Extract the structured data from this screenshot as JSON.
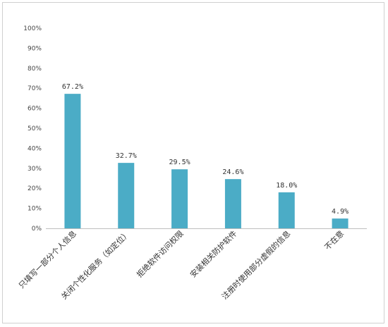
{
  "chart_data": {
    "type": "bar",
    "title": "",
    "xlabel": "",
    "ylabel": "",
    "categories": [
      "只填写一部分个人信息",
      "关闭个性化服务（如定位）",
      "拒绝软件访问权限",
      "安装相关防护软件",
      "注册时使用部分虚假的信息",
      "不在意"
    ],
    "values": [
      67.2,
      32.7,
      29.5,
      24.6,
      18.0,
      4.9
    ],
    "value_labels": [
      "67.2%",
      "32.7%",
      "29.5%",
      "24.6%",
      "18.0%",
      "4.9%"
    ],
    "ylim": [
      0,
      100
    ],
    "yticks": [
      "0%",
      "10%",
      "20%",
      "30%",
      "40%",
      "50%",
      "60%",
      "70%",
      "80%",
      "90%",
      "100%"
    ],
    "grid": false,
    "legend": "none",
    "bar_color": "#4bacc6"
  }
}
